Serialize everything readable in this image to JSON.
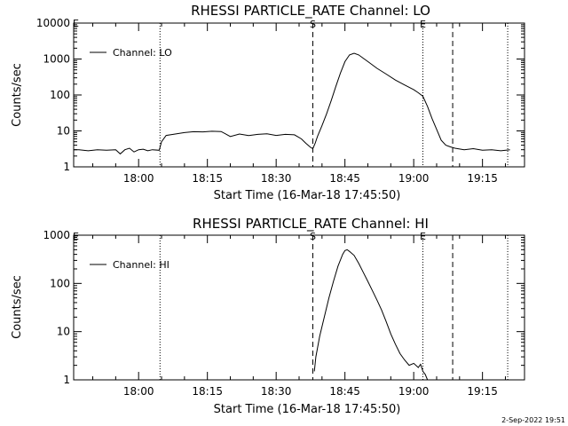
{
  "footer": {
    "date_stamp": "2-Sep-2022 19:51"
  },
  "chart_data": [
    {
      "type": "line",
      "title": "RHESSI PARTICLE_RATE Channel: LO",
      "xlabel": "Start Time (16-Mar-18 17:45:50)",
      "ylabel": "Counts/sec",
      "yscale": "log",
      "ylim": [
        1,
        10000
      ],
      "y_ticks": [
        "1",
        "10",
        "100",
        "1000",
        "10000"
      ],
      "xlim": [
        "17:45:50",
        "19:24:10"
      ],
      "x_ticks": [
        "18:00",
        "18:15",
        "18:30",
        "18:45",
        "19:00",
        "19:15"
      ],
      "legend": "Channel: LO",
      "legend_position": "top-left",
      "grid": false,
      "vlines": [
        {
          "time": "18:04:40",
          "style": "dotted"
        },
        {
          "time": "18:38:00",
          "style": "dashed",
          "label": "S"
        },
        {
          "time": "19:02:00",
          "style": "dotted",
          "label": "E"
        },
        {
          "time": "19:08:30",
          "style": "dashed"
        },
        {
          "time": "19:20:30",
          "style": "dotted"
        }
      ],
      "corner_marker": "E",
      "series": [
        {
          "name": "Channel: LO",
          "x": [
            "17:45:50",
            "17:47:00",
            "17:49:00",
            "17:51:00",
            "17:53:00",
            "17:55:00",
            "17:56:00",
            "17:57:00",
            "17:58:00",
            "17:59:00",
            "18:00:00",
            "18:01:00",
            "18:02:00",
            "18:03:00",
            "18:04:30",
            "18:05:00",
            "18:06:00",
            "18:08:00",
            "18:10:00",
            "18:12:00",
            "18:14:00",
            "18:16:00",
            "18:18:00",
            "18:20:00",
            "18:22:00",
            "18:24:00",
            "18:26:00",
            "18:28:00",
            "18:30:00",
            "18:32:00",
            "18:34:00",
            "18:35:30",
            "18:36:30",
            "18:37:30",
            "18:38:00",
            "18:38:30",
            "18:39:00",
            "18:40:00",
            "18:41:00",
            "18:42:00",
            "18:43:00",
            "18:44:00",
            "18:45:00",
            "18:46:00",
            "18:47:00",
            "18:48:00",
            "18:49:00",
            "18:50:00",
            "18:52:00",
            "18:54:00",
            "18:56:00",
            "18:58:00",
            "19:00:00",
            "19:01:00",
            "19:02:00",
            "19:03:00",
            "19:04:00",
            "19:05:00",
            "19:06:00",
            "19:07:00",
            "19:08:00",
            "19:09:00",
            "19:11:00",
            "19:13:00",
            "19:15:00",
            "19:17:00",
            "19:19:00",
            "19:21:00"
          ],
          "values": [
            3,
            3,
            2.8,
            3,
            2.9,
            3,
            2.3,
            3,
            3.3,
            2.6,
            3,
            3.1,
            2.8,
            3,
            2.9,
            5,
            7.5,
            8.2,
            9,
            9.5,
            9.4,
            9.8,
            9.6,
            7,
            8.2,
            7.4,
            8,
            8.3,
            7.5,
            8,
            7.8,
            6,
            4.5,
            3.5,
            3.2,
            4.5,
            7,
            14,
            30,
            70,
            170,
            400,
            850,
            1300,
            1450,
            1300,
            1050,
            850,
            550,
            380,
            260,
            190,
            140,
            115,
            92,
            48,
            22,
            11,
            5.5,
            4,
            3.6,
            3.3,
            3,
            3.2,
            2.9,
            3,
            2.8,
            3
          ]
        }
      ]
    },
    {
      "type": "line",
      "title": "RHESSI PARTICLE_RATE Channel: HI",
      "xlabel": "Start Time (16-Mar-18 17:45:50)",
      "ylabel": "Counts/sec",
      "yscale": "log",
      "ylim": [
        1,
        1000
      ],
      "y_ticks": [
        "1",
        "10",
        "100",
        "1000"
      ],
      "xlim": [
        "17:45:50",
        "19:24:10"
      ],
      "x_ticks": [
        "18:00",
        "18:15",
        "18:30",
        "18:45",
        "19:00",
        "19:15"
      ],
      "legend": "Channel: HI",
      "legend_position": "top-left",
      "grid": false,
      "vlines": [
        {
          "time": "18:04:40",
          "style": "dotted"
        },
        {
          "time": "18:38:00",
          "style": "dashed",
          "label": "S"
        },
        {
          "time": "19:02:00",
          "style": "dotted",
          "label": "E"
        },
        {
          "time": "19:08:30",
          "style": "dashed"
        },
        {
          "time": "19:20:30",
          "style": "dotted"
        }
      ],
      "corner_marker": "E",
      "series": [
        {
          "name": "Channel: HI",
          "x": [
            "18:38:20",
            "18:38:40",
            "18:39:30",
            "18:40:30",
            "18:41:30",
            "18:42:30",
            "18:43:30",
            "18:44:30",
            "18:45:00",
            "18:45:30",
            "18:46:00",
            "18:47:00",
            "18:48:00",
            "18:49:00",
            "18:50:00",
            "18:51:00",
            "18:52:00",
            "18:53:00",
            "18:54:00",
            "18:55:00",
            "18:56:00",
            "18:57:00",
            "18:58:00",
            "18:59:00",
            "19:00:00",
            "19:01:00",
            "19:01:30",
            "19:02:00",
            "19:02:30",
            "19:03:00"
          ],
          "values": [
            1.5,
            3,
            8,
            20,
            50,
            110,
            230,
            400,
            480,
            500,
            460,
            380,
            260,
            170,
            110,
            70,
            45,
            28,
            16,
            9,
            5.5,
            3.5,
            2.6,
            2,
            2.2,
            1.8,
            2.1,
            1.5,
            1.3,
            1
          ]
        }
      ]
    }
  ]
}
